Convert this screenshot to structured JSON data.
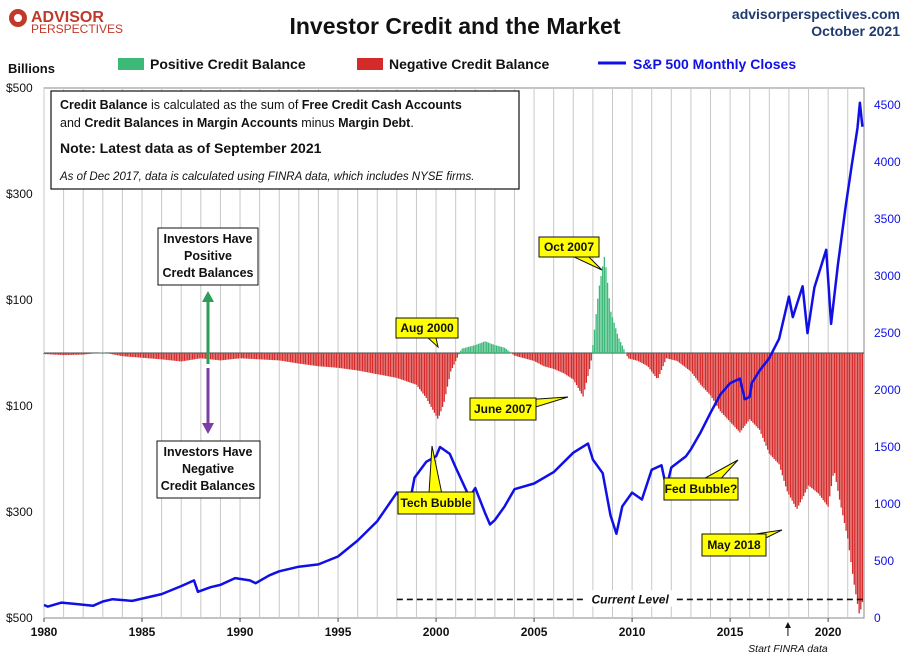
{
  "header": {
    "logo_line1": "ADVISOR",
    "logo_line2": "PERSPECTIVES",
    "title": "Investor Credit and the Market",
    "source": "advisorperspectives.com",
    "date": "October 2021"
  },
  "colors": {
    "positive": "#3cb878",
    "negative": "#d42a2a",
    "sp500": "#1010e6",
    "callout_fill": "#ffff00",
    "logo": "#c0392b"
  },
  "chart_data": {
    "type": "bar",
    "left_axis_label": "Billions",
    "legend": [
      {
        "label": "Positive Credit Balance",
        "kind": "bar",
        "color": "#3cb878"
      },
      {
        "label": "Negative Credit Balance",
        "kind": "bar",
        "color": "#d42a2a"
      },
      {
        "label": "S&P 500 Monthly Closes",
        "kind": "line",
        "color": "#1010e6"
      }
    ],
    "x_range": [
      1980,
      2021.83
    ],
    "x_ticks": [
      1980,
      1985,
      1990,
      1995,
      2000,
      2005,
      2010,
      2015,
      2020
    ],
    "left_range": [
      -500,
      500
    ],
    "left_ticks": [
      {
        "value": 500,
        "label": "$500"
      },
      {
        "value": 300,
        "label": "$300"
      },
      {
        "value": 100,
        "label": "$100"
      },
      {
        "value": -100,
        "label": "$100"
      },
      {
        "value": -300,
        "label": "$300"
      },
      {
        "value": -500,
        "label": "$500"
      }
    ],
    "right_range": [
      0,
      4650
    ],
    "right_ticks": [
      0,
      500,
      1000,
      1500,
      2000,
      2500,
      3000,
      3500,
      4000,
      4500
    ],
    "grid_vertical": true,
    "credit_balance_series": [
      [
        1980,
        -2
      ],
      [
        1981,
        -4
      ],
      [
        1982,
        -3
      ],
      [
        1983,
        1
      ],
      [
        1984,
        -6
      ],
      [
        1985,
        -9
      ],
      [
        1986,
        -12
      ],
      [
        1987,
        -16
      ],
      [
        1988,
        -10
      ],
      [
        1989,
        -14
      ],
      [
        1990,
        -10
      ],
      [
        1991,
        -12
      ],
      [
        1992,
        -14
      ],
      [
        1993,
        -20
      ],
      [
        1994,
        -25
      ],
      [
        1995,
        -28
      ],
      [
        1996,
        -33
      ],
      [
        1997,
        -40
      ],
      [
        1998,
        -47
      ],
      [
        1999,
        -60
      ],
      [
        1999.5,
        -85
      ],
      [
        2000.1,
        -125
      ],
      [
        2000.4,
        -95
      ],
      [
        2000.75,
        -35
      ],
      [
        2001.3,
        8
      ],
      [
        2002,
        15
      ],
      [
        2002.5,
        22
      ],
      [
        2003,
        15
      ],
      [
        2003.5,
        10
      ],
      [
        2004,
        -5
      ],
      [
        2005,
        -15
      ],
      [
        2005.5,
        -25
      ],
      [
        2006,
        -30
      ],
      [
        2006.5,
        -38
      ],
      [
        2007,
        -50
      ],
      [
        2007.5,
        -82
      ],
      [
        2007.9,
        -20
      ],
      [
        2008.3,
        120
      ],
      [
        2008.6,
        185
      ],
      [
        2008.9,
        80
      ],
      [
        2009.3,
        30
      ],
      [
        2009.8,
        -10
      ],
      [
        2010.3,
        -15
      ],
      [
        2010.8,
        -25
      ],
      [
        2011.3,
        -50
      ],
      [
        2011.75,
        -10
      ],
      [
        2012.3,
        -15
      ],
      [
        2013,
        -35
      ],
      [
        2013.5,
        -60
      ],
      [
        2014,
        -80
      ],
      [
        2014.5,
        -110
      ],
      [
        2015,
        -130
      ],
      [
        2015.5,
        -150
      ],
      [
        2016,
        -125
      ],
      [
        2016.5,
        -145
      ],
      [
        2017,
        -190
      ],
      [
        2017.5,
        -210
      ],
      [
        2017.9,
        -260
      ],
      [
        2018.4,
        -295
      ],
      [
        2018.75,
        -270
      ],
      [
        2019,
        -250
      ],
      [
        2019.5,
        -265
      ],
      [
        2020,
        -290
      ],
      [
        2020.3,
        -220
      ],
      [
        2020.6,
        -280
      ],
      [
        2021,
        -350
      ],
      [
        2021.3,
        -430
      ],
      [
        2021.6,
        -495
      ],
      [
        2021.75,
        -470
      ]
    ],
    "sp500_series": [
      [
        1980,
        114
      ],
      [
        1980.2,
        100
      ],
      [
        1980.9,
        135
      ],
      [
        1981.5,
        125
      ],
      [
        1982.5,
        107
      ],
      [
        1983,
        145
      ],
      [
        1983.5,
        165
      ],
      [
        1984.5,
        150
      ],
      [
        1985,
        170
      ],
      [
        1986,
        210
      ],
      [
        1987,
        280
      ],
      [
        1987.65,
        330
      ],
      [
        1987.85,
        230
      ],
      [
        1988.5,
        270
      ],
      [
        1989,
        290
      ],
      [
        1989.75,
        350
      ],
      [
        1990.5,
        330
      ],
      [
        1990.8,
        305
      ],
      [
        1991.5,
        375
      ],
      [
        1992,
        410
      ],
      [
        1993,
        450
      ],
      [
        1994,
        470
      ],
      [
        1995,
        540
      ],
      [
        1996,
        680
      ],
      [
        1997,
        850
      ],
      [
        1998,
        1100
      ],
      [
        1998.6,
        960
      ],
      [
        1998.9,
        1230
      ],
      [
        1999.5,
        1370
      ],
      [
        2000,
        1420
      ],
      [
        2000.2,
        1500
      ],
      [
        2000.7,
        1440
      ],
      [
        2001,
        1320
      ],
      [
        2001.7,
        1060
      ],
      [
        2002,
        1140
      ],
      [
        2002.5,
        920
      ],
      [
        2002.75,
        820
      ],
      [
        2003,
        860
      ],
      [
        2003.5,
        980
      ],
      [
        2004,
        1130
      ],
      [
        2005,
        1180
      ],
      [
        2006,
        1280
      ],
      [
        2007,
        1450
      ],
      [
        2007.75,
        1530
      ],
      [
        2008,
        1390
      ],
      [
        2008.5,
        1270
      ],
      [
        2008.9,
        900
      ],
      [
        2009.2,
        740
      ],
      [
        2009.5,
        980
      ],
      [
        2010,
        1100
      ],
      [
        2010.5,
        1040
      ],
      [
        2011,
        1300
      ],
      [
        2011.5,
        1340
      ],
      [
        2011.75,
        1140
      ],
      [
        2012,
        1320
      ],
      [
        2012.75,
        1420
      ],
      [
        2013,
        1480
      ],
      [
        2013.5,
        1630
      ],
      [
        2014,
        1800
      ],
      [
        2014.5,
        1960
      ],
      [
        2015,
        2060
      ],
      [
        2015.5,
        2100
      ],
      [
        2015.75,
        1920
      ],
      [
        2016,
        1940
      ],
      [
        2016.1,
        2060
      ],
      [
        2016.5,
        2170
      ],
      [
        2017,
        2280
      ],
      [
        2017.5,
        2450
      ],
      [
        2018,
        2820
      ],
      [
        2018.2,
        2640
      ],
      [
        2018.7,
        2910
      ],
      [
        2018.95,
        2500
      ],
      [
        2019.3,
        2900
      ],
      [
        2019.9,
        3230
      ],
      [
        2020.15,
        2580
      ],
      [
        2020.5,
        3100
      ],
      [
        2020.9,
        3620
      ],
      [
        2021.2,
        3970
      ],
      [
        2021.5,
        4300
      ],
      [
        2021.62,
        4520
      ],
      [
        2021.75,
        4310
      ]
    ],
    "callouts": [
      {
        "text": "Oct 2007",
        "year": 2008.75,
        "value": 185
      },
      {
        "text": "Aug 2000",
        "year": 2000.6,
        "value": 35
      },
      {
        "text": "June 2007",
        "year": 2007.3,
        "value": -65
      },
      {
        "text": "Tech Bubble",
        "year": 2000.2,
        "value": -220
      },
      {
        "text": "Fed Bubble?",
        "year": 2011.5,
        "value": -270
      },
      {
        "text": "May 2018",
        "year": 2018.3,
        "value": -315
      }
    ],
    "reference_lines": [
      {
        "label": "Current Level",
        "value": -465,
        "from": 1998,
        "to": 2021.8,
        "style": "dashed"
      }
    ],
    "notes": {
      "box_line1": [
        {
          "text": "Credit Balance",
          "bold": true
        },
        {
          "text": " is calculated as the sum of ",
          "bold": false
        },
        {
          "text": "Free Credit Cash Accounts",
          "bold": true
        }
      ],
      "box_line2": [
        {
          "text": "and ",
          "bold": false
        },
        {
          "text": "Credit Balances in Margin Accounts",
          "bold": true
        },
        {
          "text": " minus ",
          "bold": false
        },
        {
          "text": "Margin Debt",
          "bold": true
        },
        {
          "text": ".",
          "bold": false
        }
      ],
      "box_line3": "Note: Latest data as of September 2021",
      "box_line4": "As of Dec 2017, data is calculated using FINRA data, which includes NYSE firms.",
      "positive_label": [
        "Investors Have",
        "Positive",
        "Credt Balances"
      ],
      "negative_label": [
        "Investors Have",
        "Negative",
        "Credit Balances"
      ],
      "finra_label": "Start FINRA data",
      "finra_year": 2017.95
    }
  }
}
